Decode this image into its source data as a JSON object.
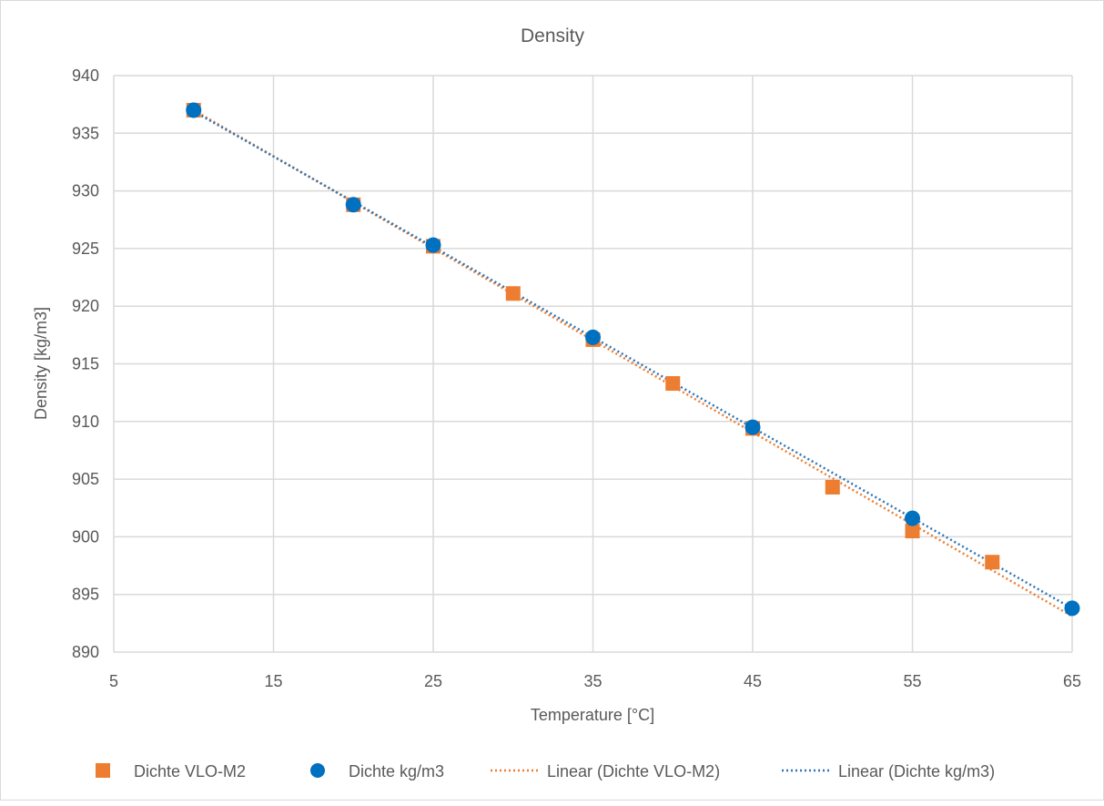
{
  "chart_data": {
    "type": "scatter",
    "title": "Density",
    "xlabel": "Temperature [°C]",
    "ylabel": "Density [kg/m3]",
    "xlim": [
      5,
      65
    ],
    "ylim": [
      890,
      940
    ],
    "xticks": [
      "5",
      "15",
      "25",
      "35",
      "45",
      "55",
      "65"
    ],
    "yticks": [
      "890",
      "895",
      "900",
      "905",
      "910",
      "915",
      "920",
      "925",
      "930",
      "935",
      "940"
    ],
    "grid": true,
    "legend_position": "bottom",
    "series": [
      {
        "name": "Dichte VLO-M2",
        "marker": "square",
        "color": "#ED7D31",
        "x": [
          10,
          20,
          25,
          30,
          35,
          40,
          45,
          50,
          55,
          60
        ],
        "y": [
          937.0,
          928.8,
          925.2,
          921.1,
          917.1,
          913.3,
          909.4,
          904.3,
          900.5,
          897.8
        ]
      },
      {
        "name": "Dichte kg/m3",
        "marker": "circle",
        "color": "#0070C0",
        "x": [
          10,
          20,
          25,
          35,
          45,
          55,
          65
        ],
        "y": [
          937.0,
          928.8,
          925.3,
          917.3,
          909.5,
          901.6,
          893.8
        ]
      }
    ],
    "trendlines": [
      {
        "name": "Linear (Dichte VLO-M2)",
        "of_series": 0,
        "color": "#ED7D31",
        "forecast_to": 65
      },
      {
        "name": "Linear (Dichte kg/m3)",
        "of_series": 1,
        "color": "#2E75B6"
      }
    ]
  }
}
